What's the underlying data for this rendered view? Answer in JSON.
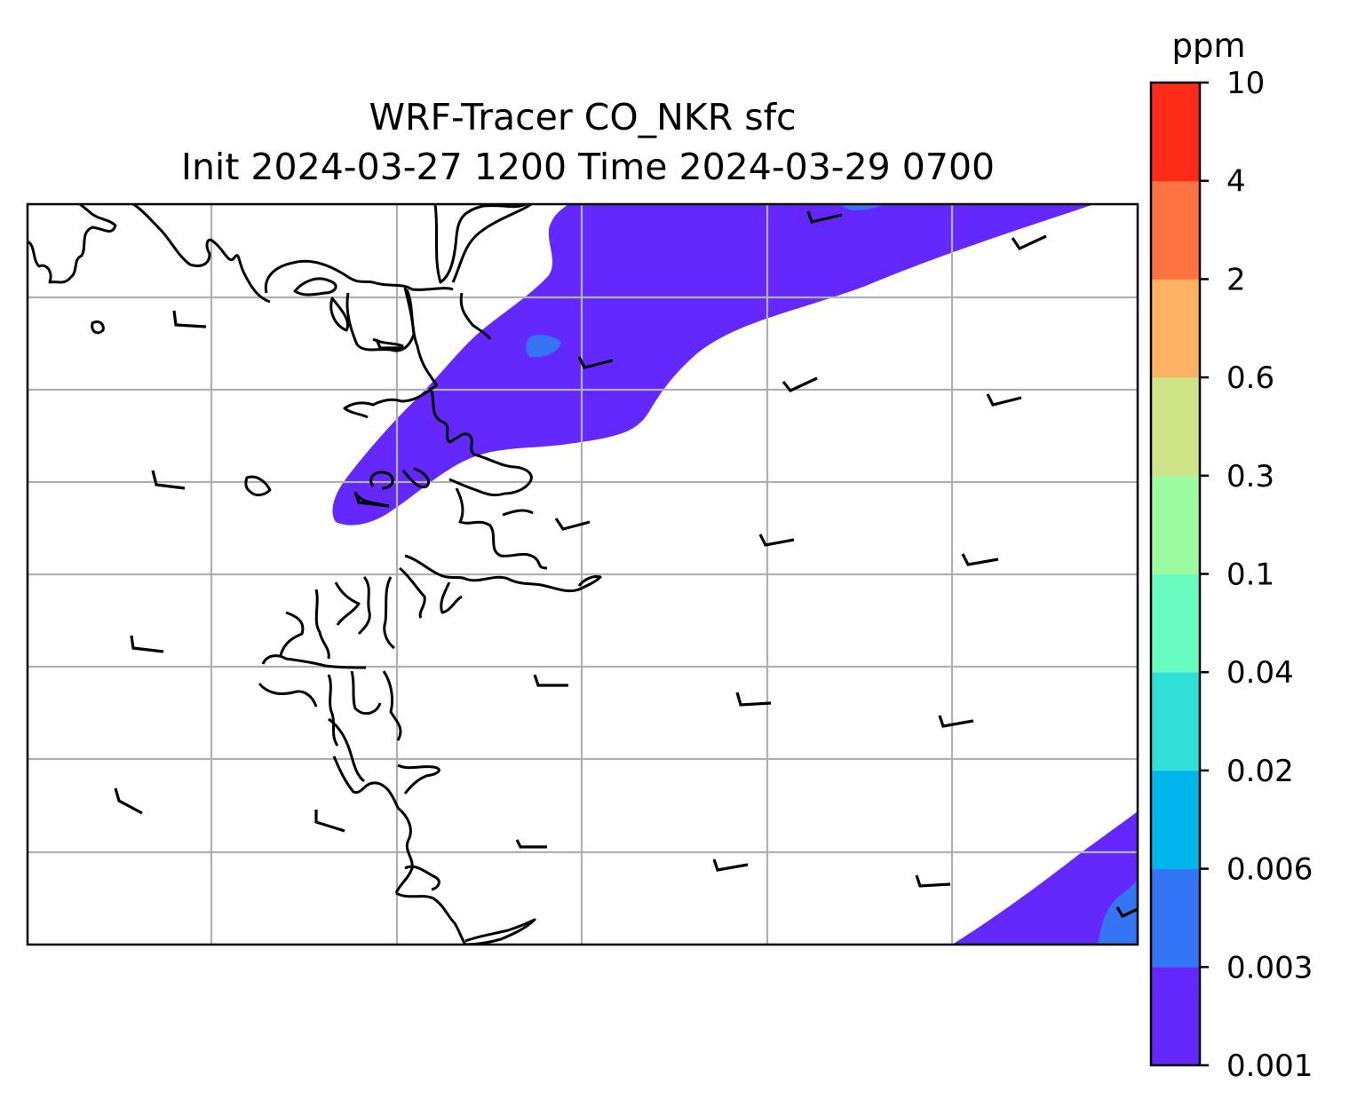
{
  "title": {
    "line1": "WRF-Tracer CO_NKR sfc",
    "line2": "Init 2024-03-27 1200 Time 2024-03-29 0700"
  },
  "colorbar": {
    "units": "ppm",
    "levels": [
      "0.001",
      "0.003",
      "0.006",
      "0.02",
      "0.04",
      "0.1",
      "0.3",
      "0.6",
      "2",
      "4",
      "10"
    ],
    "colors": [
      "#6428ff",
      "#3574f4",
      "#00b4ec",
      "#30e0d8",
      "#68fcbe",
      "#9cfba0",
      "#cfe389",
      "#fdb163",
      "#ff7342",
      "#ff2a18"
    ]
  },
  "map": {
    "gridlines": true,
    "contour_fill_colors": {
      "lowest": "#6428ff",
      "second": "#3574f4"
    }
  },
  "chart_data": {
    "type": "heatmap",
    "title": "WRF-Tracer CO_NKR sfc / Init 2024-03-27 1200 Time 2024-03-29 0700",
    "colorbar_label": "ppm",
    "colorbar_levels": [
      0.001,
      0.003,
      0.006,
      0.02,
      0.04,
      0.1,
      0.3,
      0.6,
      2,
      4,
      10
    ],
    "filled_regions": [
      {
        "level_range": [
          0.001,
          0.003
        ],
        "location": "plume along northern coast extending northeast"
      },
      {
        "level_range": [
          0.003,
          0.006
        ],
        "location": "small patches in plume core"
      },
      {
        "level_range": [
          0.001,
          0.003
        ],
        "location": "bottom-right corner"
      }
    ],
    "wind_barbs": "westerly to west-northwesterly light winds"
  }
}
